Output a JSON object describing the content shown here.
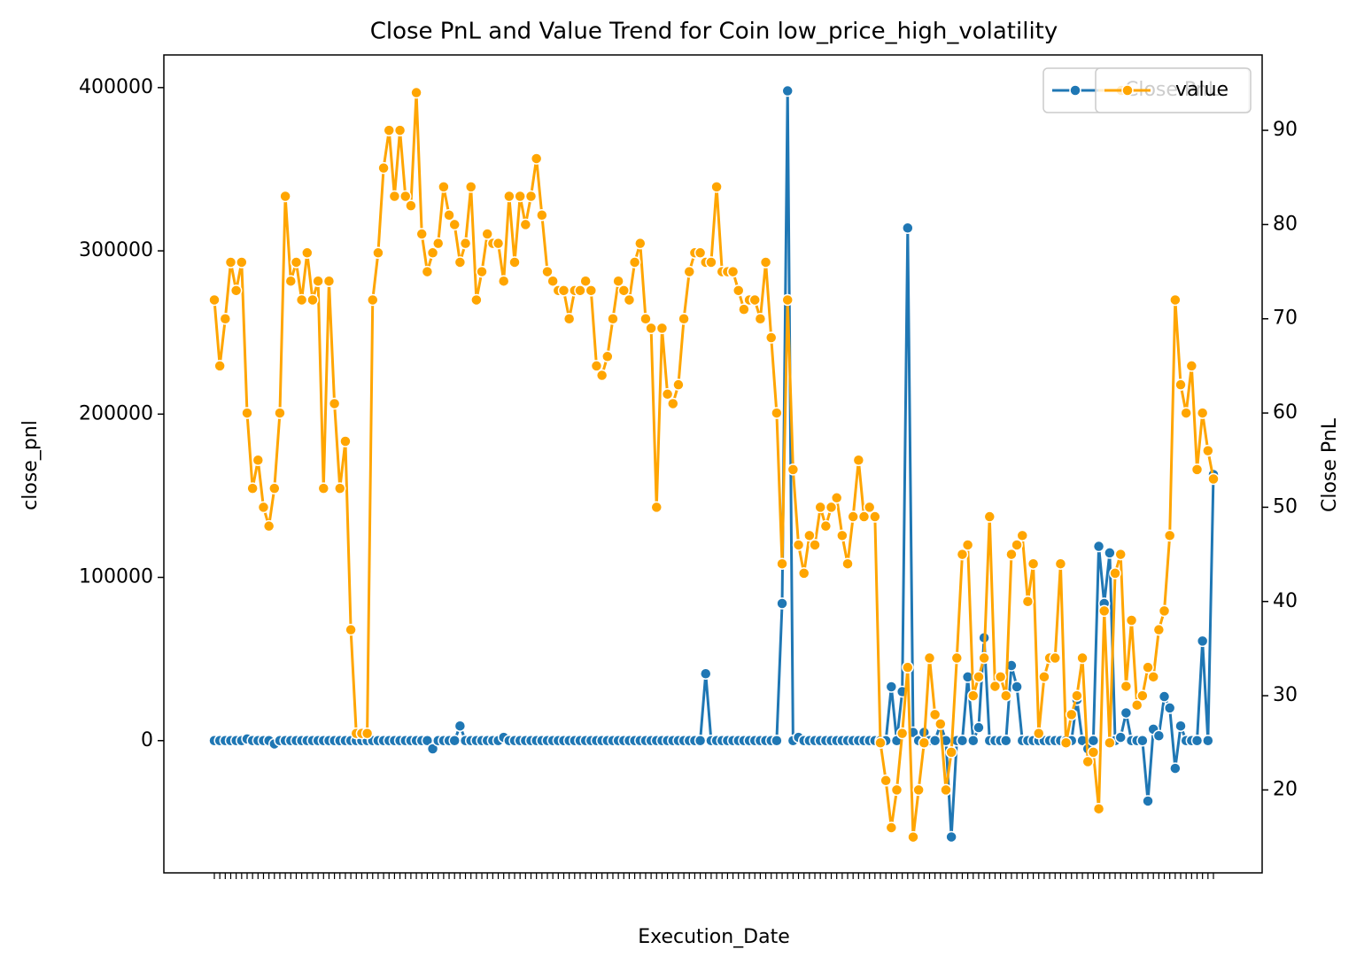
{
  "chart_data": {
    "type": "line",
    "title": "Close PnL and Value Trend for Coin low_price_high_volatility",
    "x_label": "Execution_Date",
    "y_label": "close_pnl",
    "y2_label": "Close PnL",
    "categories": [
      null,
      null,
      null,
      null,
      null,
      null,
      null,
      null,
      null,
      null,
      null,
      null,
      null,
      null,
      null,
      null,
      null,
      null,
      null,
      null,
      null,
      null,
      null,
      null,
      null,
      null,
      null,
      null,
      null,
      null,
      null,
      null,
      null,
      null,
      null,
      null,
      null,
      null,
      null,
      null,
      null,
      null,
      null,
      null,
      null,
      null,
      null,
      null,
      null,
      null,
      null,
      null,
      null,
      null,
      null,
      null,
      null,
      null,
      null,
      null,
      null,
      null,
      null,
      null,
      null,
      null,
      null,
      null,
      null,
      null,
      null,
      null,
      null,
      null,
      null,
      null,
      null,
      null,
      null,
      null,
      null,
      null,
      null,
      null,
      null,
      null,
      null,
      null,
      null,
      null,
      null,
      null,
      null,
      null,
      null,
      null,
      null,
      null,
      null,
      null,
      null,
      null,
      null,
      null,
      null,
      null,
      null,
      null,
      null,
      null,
      null,
      null,
      null,
      null,
      null,
      null,
      null,
      null,
      null,
      null,
      null,
      null,
      null,
      null,
      null,
      null,
      null,
      null,
      null,
      null,
      null,
      null,
      null,
      null,
      null,
      null,
      null,
      null,
      null,
      null,
      null,
      null,
      null,
      null,
      null,
      null,
      null,
      null,
      null,
      null,
      null,
      null,
      null,
      null,
      null,
      null,
      null,
      null,
      null,
      null,
      null,
      null,
      null,
      null,
      null,
      null,
      null,
      null,
      null,
      null,
      null,
      null,
      null,
      null,
      null,
      null,
      null,
      null,
      null,
      null,
      null,
      null,
      null,
      null
    ],
    "series": [
      {
        "name": "Close PnL",
        "color": "#1f77b4",
        "values": [
          0,
          0,
          0,
          0,
          0,
          0,
          1000,
          0,
          0,
          0,
          0,
          -2000,
          0,
          0,
          0,
          0,
          0,
          0,
          0,
          0,
          0,
          0,
          0,
          0,
          0,
          0,
          0,
          0,
          0,
          0,
          0,
          0,
          0,
          0,
          0,
          0,
          0,
          0,
          0,
          0,
          -5000,
          0,
          0,
          0,
          0,
          9000,
          0,
          0,
          0,
          0,
          0,
          0,
          0,
          2000,
          0,
          0,
          0,
          0,
          0,
          0,
          0,
          0,
          0,
          0,
          0,
          0,
          0,
          0,
          0,
          0,
          0,
          0,
          0,
          0,
          0,
          0,
          0,
          0,
          0,
          0,
          0,
          0,
          0,
          0,
          0,
          0,
          0,
          0,
          0,
          0,
          41000,
          0,
          0,
          0,
          0,
          0,
          0,
          0,
          0,
          0,
          0,
          0,
          0,
          0,
          84000,
          398000,
          0,
          2000,
          0,
          0,
          0,
          0,
          0,
          0,
          0,
          0,
          0,
          0,
          0,
          0,
          0,
          0,
          0,
          0,
          33000,
          0,
          30000,
          314000,
          5000,
          0,
          5000,
          0,
          0,
          10000,
          0,
          -59000,
          0,
          0,
          39000,
          0,
          8000,
          63000,
          0,
          0,
          0,
          0,
          46000,
          33000,
          0,
          0,
          0,
          0,
          0,
          0,
          0,
          0,
          0,
          0,
          25000,
          0,
          -5000,
          0,
          119000,
          84000,
          115000,
          0,
          2000,
          17000,
          0,
          0,
          0,
          -37000,
          7000,
          3000,
          27000,
          20000,
          -17000,
          9000,
          0,
          0,
          0,
          61000,
          0,
          163000
        ]
      },
      {
        "name": "value",
        "color": "#ffa500",
        "axis": "y2",
        "values": [
          72,
          65,
          70,
          76,
          73,
          76,
          60,
          52,
          55,
          50,
          48,
          52,
          60,
          83,
          74,
          76,
          72,
          77,
          72,
          74,
          52,
          74,
          61,
          52,
          57,
          37,
          26,
          26,
          26,
          72,
          77,
          86,
          90,
          83,
          90,
          83,
          82,
          94,
          79,
          75,
          77,
          78,
          84,
          81,
          80,
          76,
          78,
          84,
          72,
          75,
          79,
          78,
          78,
          74,
          83,
          76,
          83,
          80,
          83,
          87,
          81,
          75,
          74,
          73,
          73,
          70,
          73,
          73,
          74,
          73,
          65,
          64,
          66,
          70,
          74,
          73,
          72,
          76,
          78,
          70,
          69,
          50,
          69,
          62,
          61,
          63,
          70,
          75,
          77,
          77,
          76,
          76,
          84,
          75,
          75,
          75,
          73,
          71,
          72,
          72,
          70,
          76,
          68,
          60,
          44,
          72,
          54,
          46,
          43,
          47,
          46,
          50,
          48,
          50,
          51,
          47,
          44,
          49,
          55,
          49,
          50,
          49,
          25,
          21,
          16,
          20,
          26,
          33,
          15,
          20,
          25,
          34,
          28,
          27,
          20,
          24,
          34,
          45,
          46,
          30,
          32,
          34,
          49,
          31,
          32,
          30,
          45,
          46,
          47,
          40,
          44,
          26,
          32,
          34,
          34,
          44,
          25,
          28,
          30,
          34,
          23,
          24,
          18,
          39,
          25,
          43,
          45,
          31,
          38,
          29,
          30,
          33,
          32,
          37,
          39,
          47,
          72,
          63,
          60,
          65,
          54,
          60,
          56,
          53
        ]
      }
    ],
    "ylim": [
      -81000,
      420000
    ],
    "yticks": [
      0,
      100000,
      200000,
      300000,
      400000
    ],
    "y2lim": [
      11.2,
      98.0
    ],
    "y2ticks": [
      20,
      30,
      40,
      50,
      60,
      70,
      80,
      90
    ],
    "legend": "upper right"
  }
}
